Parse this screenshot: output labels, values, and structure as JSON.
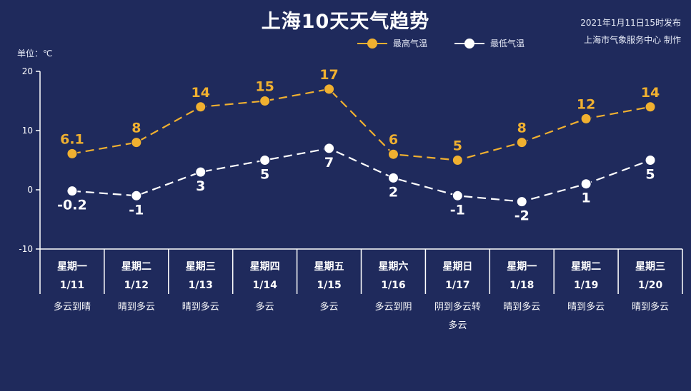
{
  "header": {
    "title": "上海10天天气趋势",
    "publish_line1": "2021年1月11日15时发布",
    "publish_line2": "上海市气象服务中心 制作",
    "unit_label": "单位：℃"
  },
  "colors": {
    "high": "#f0b030",
    "low": "#ffffff",
    "axis": "#ffffff",
    "background": "#1f2a5c"
  },
  "chart_data": {
    "type": "line",
    "unit": "℃",
    "ylim": [
      -10,
      20
    ],
    "yticks": [
      -10,
      0,
      10,
      20
    ],
    "grid": false,
    "legend_position": "top-right",
    "days": [
      {
        "weekday": "星期一",
        "date": "1/11",
        "weather": [
          "多云到晴"
        ]
      },
      {
        "weekday": "星期二",
        "date": "1/12",
        "weather": [
          "晴到多云"
        ]
      },
      {
        "weekday": "星期三",
        "date": "1/13",
        "weather": [
          "晴到多云"
        ]
      },
      {
        "weekday": "星期四",
        "date": "1/14",
        "weather": [
          "多云"
        ]
      },
      {
        "weekday": "星期五",
        "date": "1/15",
        "weather": [
          "多云"
        ]
      },
      {
        "weekday": "星期六",
        "date": "1/16",
        "weather": [
          "多云到阴"
        ]
      },
      {
        "weekday": "星期日",
        "date": "1/17",
        "weather": [
          "阴到多云转",
          "多云"
        ]
      },
      {
        "weekday": "星期一",
        "date": "1/18",
        "weather": [
          "晴到多云"
        ]
      },
      {
        "weekday": "星期二",
        "date": "1/19",
        "weather": [
          "晴到多云"
        ]
      },
      {
        "weekday": "星期三",
        "date": "1/20",
        "weather": [
          "晴到多云"
        ]
      }
    ],
    "series": [
      {
        "name": "最高气温",
        "values": [
          6.1,
          8,
          14,
          15,
          17,
          6,
          5,
          8,
          12,
          14
        ],
        "labels": [
          "6.1",
          "8",
          "14",
          "15",
          "17",
          "6",
          "5",
          "8",
          "12",
          "14"
        ]
      },
      {
        "name": "最低气温",
        "values": [
          -0.2,
          -1,
          3,
          5,
          7,
          2,
          -1,
          -2,
          1,
          5
        ],
        "labels": [
          "-0.2",
          "-1",
          "3",
          "5",
          "7",
          "2",
          "-1",
          "-2",
          "1",
          "5"
        ]
      }
    ]
  }
}
